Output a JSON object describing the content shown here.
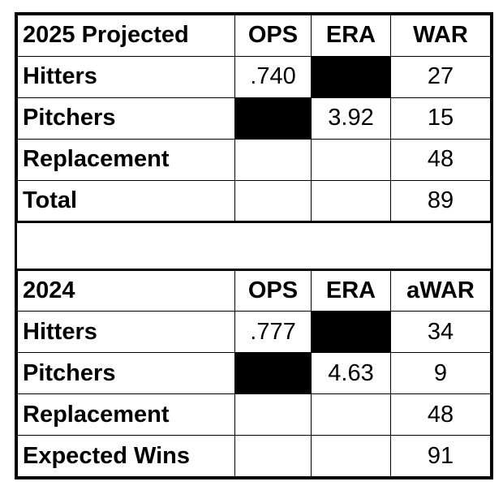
{
  "table_2025": {
    "header": {
      "label": "2025 Projected",
      "ops": "OPS",
      "era": "ERA",
      "war": "WAR"
    },
    "rows": [
      {
        "label": "Hitters",
        "ops": ".740",
        "era": "",
        "war": "27"
      },
      {
        "label": "Pitchers",
        "ops": "",
        "era": "3.92",
        "war": "15"
      },
      {
        "label": "Replacement",
        "ops": "",
        "era": "",
        "war": "48"
      },
      {
        "label": "Total",
        "ops": "",
        "era": "",
        "war": "89"
      }
    ]
  },
  "table_2024": {
    "header": {
      "label": "2024",
      "ops": "OPS",
      "era": "ERA",
      "war": "aWAR"
    },
    "rows": [
      {
        "label": "Hitters",
        "ops": ".777",
        "era": "",
        "war": "34"
      },
      {
        "label": "Pitchers",
        "ops": "",
        "era": "4.63",
        "war": "9"
      },
      {
        "label": "Replacement",
        "ops": "",
        "era": "",
        "war": "48"
      },
      {
        "label": "Expected Wins",
        "ops": "",
        "era": "",
        "war": "91"
      }
    ]
  },
  "colors": {
    "blackout_cell": "#000000",
    "border": "#000000",
    "background": "#ffffff"
  }
}
